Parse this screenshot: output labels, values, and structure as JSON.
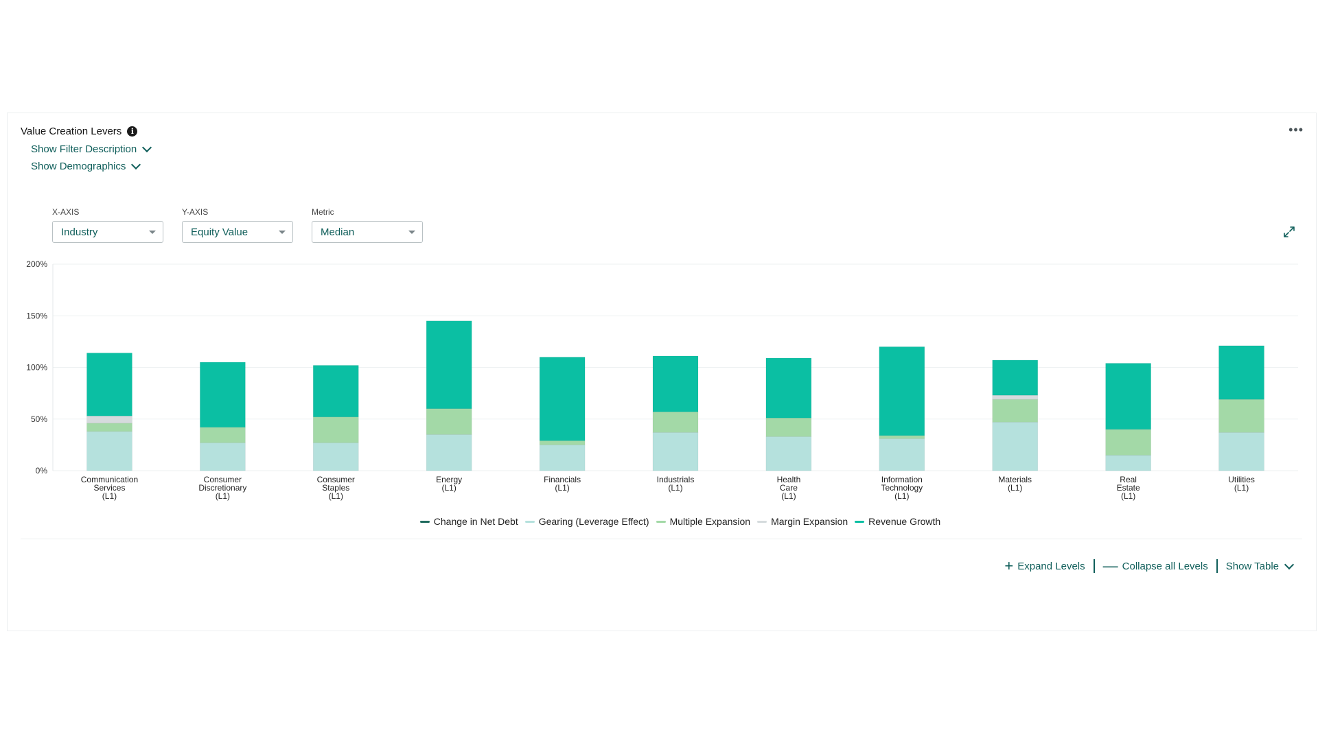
{
  "card": {
    "title": "Value Creation Levers",
    "info_icon": "info-icon",
    "more_icon": "more-horizontal-icon",
    "filter_link": "Show Filter Description",
    "demographics_link": "Show Demographics"
  },
  "controls": {
    "x_axis": {
      "label": "X-AXIS",
      "value": "Industry"
    },
    "y_axis": {
      "label": "Y-AXIS",
      "value": "Equity Value"
    },
    "metric": {
      "label": "Metric",
      "value": "Median"
    }
  },
  "legend": [
    {
      "name": "Change in Net Debt",
      "color": "#1f6b5e"
    },
    {
      "name": "Gearing (Leverage Effect)",
      "color": "#b5e1dd"
    },
    {
      "name": "Multiple Expansion",
      "color": "#a3d9a7"
    },
    {
      "name": "Margin Expansion",
      "color": "#d5dbdd"
    },
    {
      "name": "Revenue Growth",
      "color": "#0bbfa3"
    }
  ],
  "actions": {
    "expand": "Expand Levels",
    "collapse": "Collapse all Levels",
    "show_table": "Show Table"
  },
  "chart_data": {
    "type": "bar",
    "stacked": true,
    "ylim": [
      0,
      200
    ],
    "yticks": [
      "0%",
      "50%",
      "100%",
      "150%",
      "200%"
    ],
    "ytick_values": [
      0,
      50,
      100,
      150,
      200
    ],
    "grid": true,
    "legend_position": "bottom",
    "categories": [
      [
        "Communication",
        "Services",
        "(L1)"
      ],
      [
        "Consumer",
        "Discretionary",
        "(L1)"
      ],
      [
        "Consumer",
        "Staples",
        "(L1)"
      ],
      [
        "Energy",
        "(L1)"
      ],
      [
        "Financials",
        "(L1)"
      ],
      [
        "Industrials",
        "(L1)"
      ],
      [
        "Health",
        "Care",
        "(L1)"
      ],
      [
        "Information",
        "Technology",
        "(L1)"
      ],
      [
        "Materials",
        "(L1)"
      ],
      [
        "Real",
        "Estate",
        "(L1)"
      ],
      [
        "Utilities",
        "(L1)"
      ]
    ],
    "series": [
      {
        "name": "Change in Net Debt",
        "color": "#1f6b5e",
        "values": [
          0,
          0,
          0,
          0,
          0,
          0,
          0,
          0,
          0,
          0,
          0
        ]
      },
      {
        "name": "Gearing (Leverage Effect)",
        "color": "#b5e1dd",
        "values": [
          38,
          27,
          27,
          35,
          25,
          37,
          33,
          31,
          47,
          15,
          37
        ]
      },
      {
        "name": "Multiple Expansion",
        "color": "#a3d9a7",
        "values": [
          8,
          15,
          25,
          25,
          4,
          20,
          18,
          3,
          22,
          25,
          32
        ]
      },
      {
        "name": "Margin Expansion",
        "color": "#d5dbdd",
        "values": [
          7,
          0,
          0,
          0,
          0,
          0,
          0,
          0,
          4,
          0,
          0
        ]
      },
      {
        "name": "Revenue Growth",
        "color": "#0bbfa3",
        "values": [
          61,
          63,
          50,
          85,
          81,
          54,
          58,
          86,
          34,
          64,
          52
        ]
      }
    ]
  }
}
